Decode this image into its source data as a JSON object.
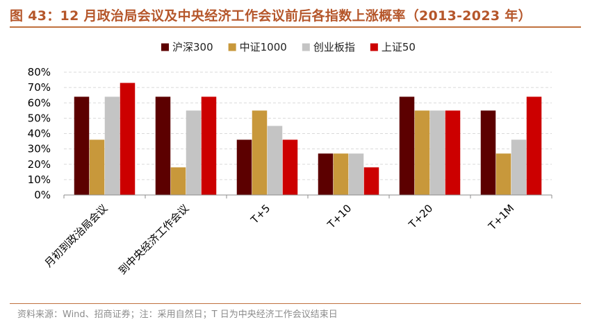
{
  "title": "图 43：12 月政治局会议及中央经济工作会议前后各指数上涨概率（2013-2023 年）",
  "source": "资料来源：Wind、招商证券；注：采用自然日；T 日为中央经济工作会议结束日",
  "chart_data": {
    "type": "bar",
    "title": "图 43：12 月政治局会议及中央经济工作会议前后各指数上涨概率（2013-2023 年）",
    "categories": [
      "月初到政治局会议",
      "到中央经济工作会议",
      "T+5",
      "T+10",
      "T+20",
      "T+1M"
    ],
    "series": [
      {
        "name": "沪深300",
        "color": "#5c0000",
        "values": [
          64,
          64,
          36,
          27,
          64,
          55
        ]
      },
      {
        "name": "中证1000",
        "color": "#c8983b",
        "values": [
          36,
          18,
          55,
          27,
          55,
          27
        ]
      },
      {
        "name": "创业板指",
        "color": "#c4c4c4",
        "values": [
          64,
          55,
          45,
          27,
          55,
          36
        ]
      },
      {
        "name": "上证50",
        "color": "#cc0000",
        "values": [
          73,
          64,
          36,
          18,
          55,
          64
        ]
      }
    ],
    "ylim": [
      0,
      80
    ],
    "yticks": [
      "0%",
      "10%",
      "20%",
      "30%",
      "40%",
      "50%",
      "60%",
      "70%",
      "80%"
    ],
    "grid": true,
    "legend_position": "top-center"
  }
}
